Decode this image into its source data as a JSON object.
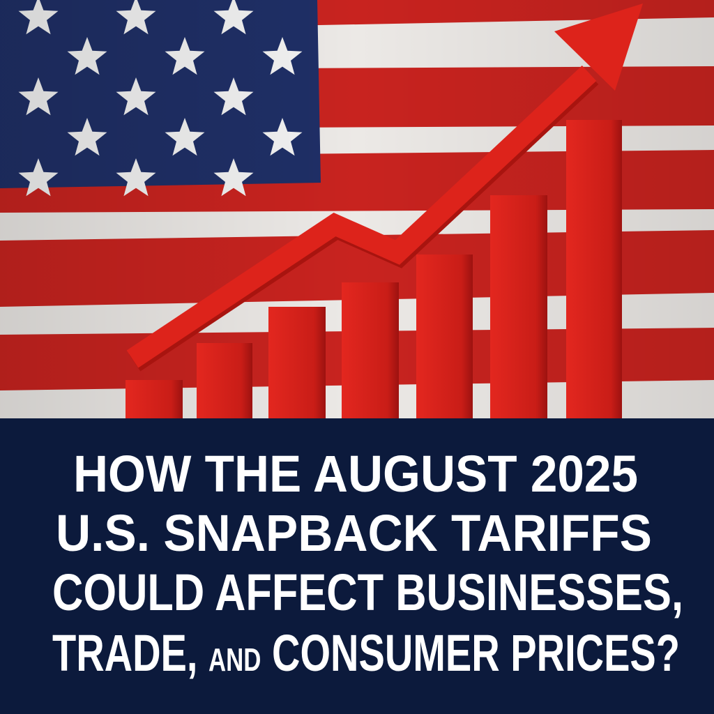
{
  "headline": {
    "lines": [
      [
        "HOW THE AUGUST 2025"
      ],
      [
        "U.S. SNAPBACK TARIFFS"
      ],
      [
        "COULD AFFECT BUSINESSES,"
      ],
      [
        "TRADE,",
        "AND",
        "CONSUMER PRICES?"
      ]
    ]
  }
}
